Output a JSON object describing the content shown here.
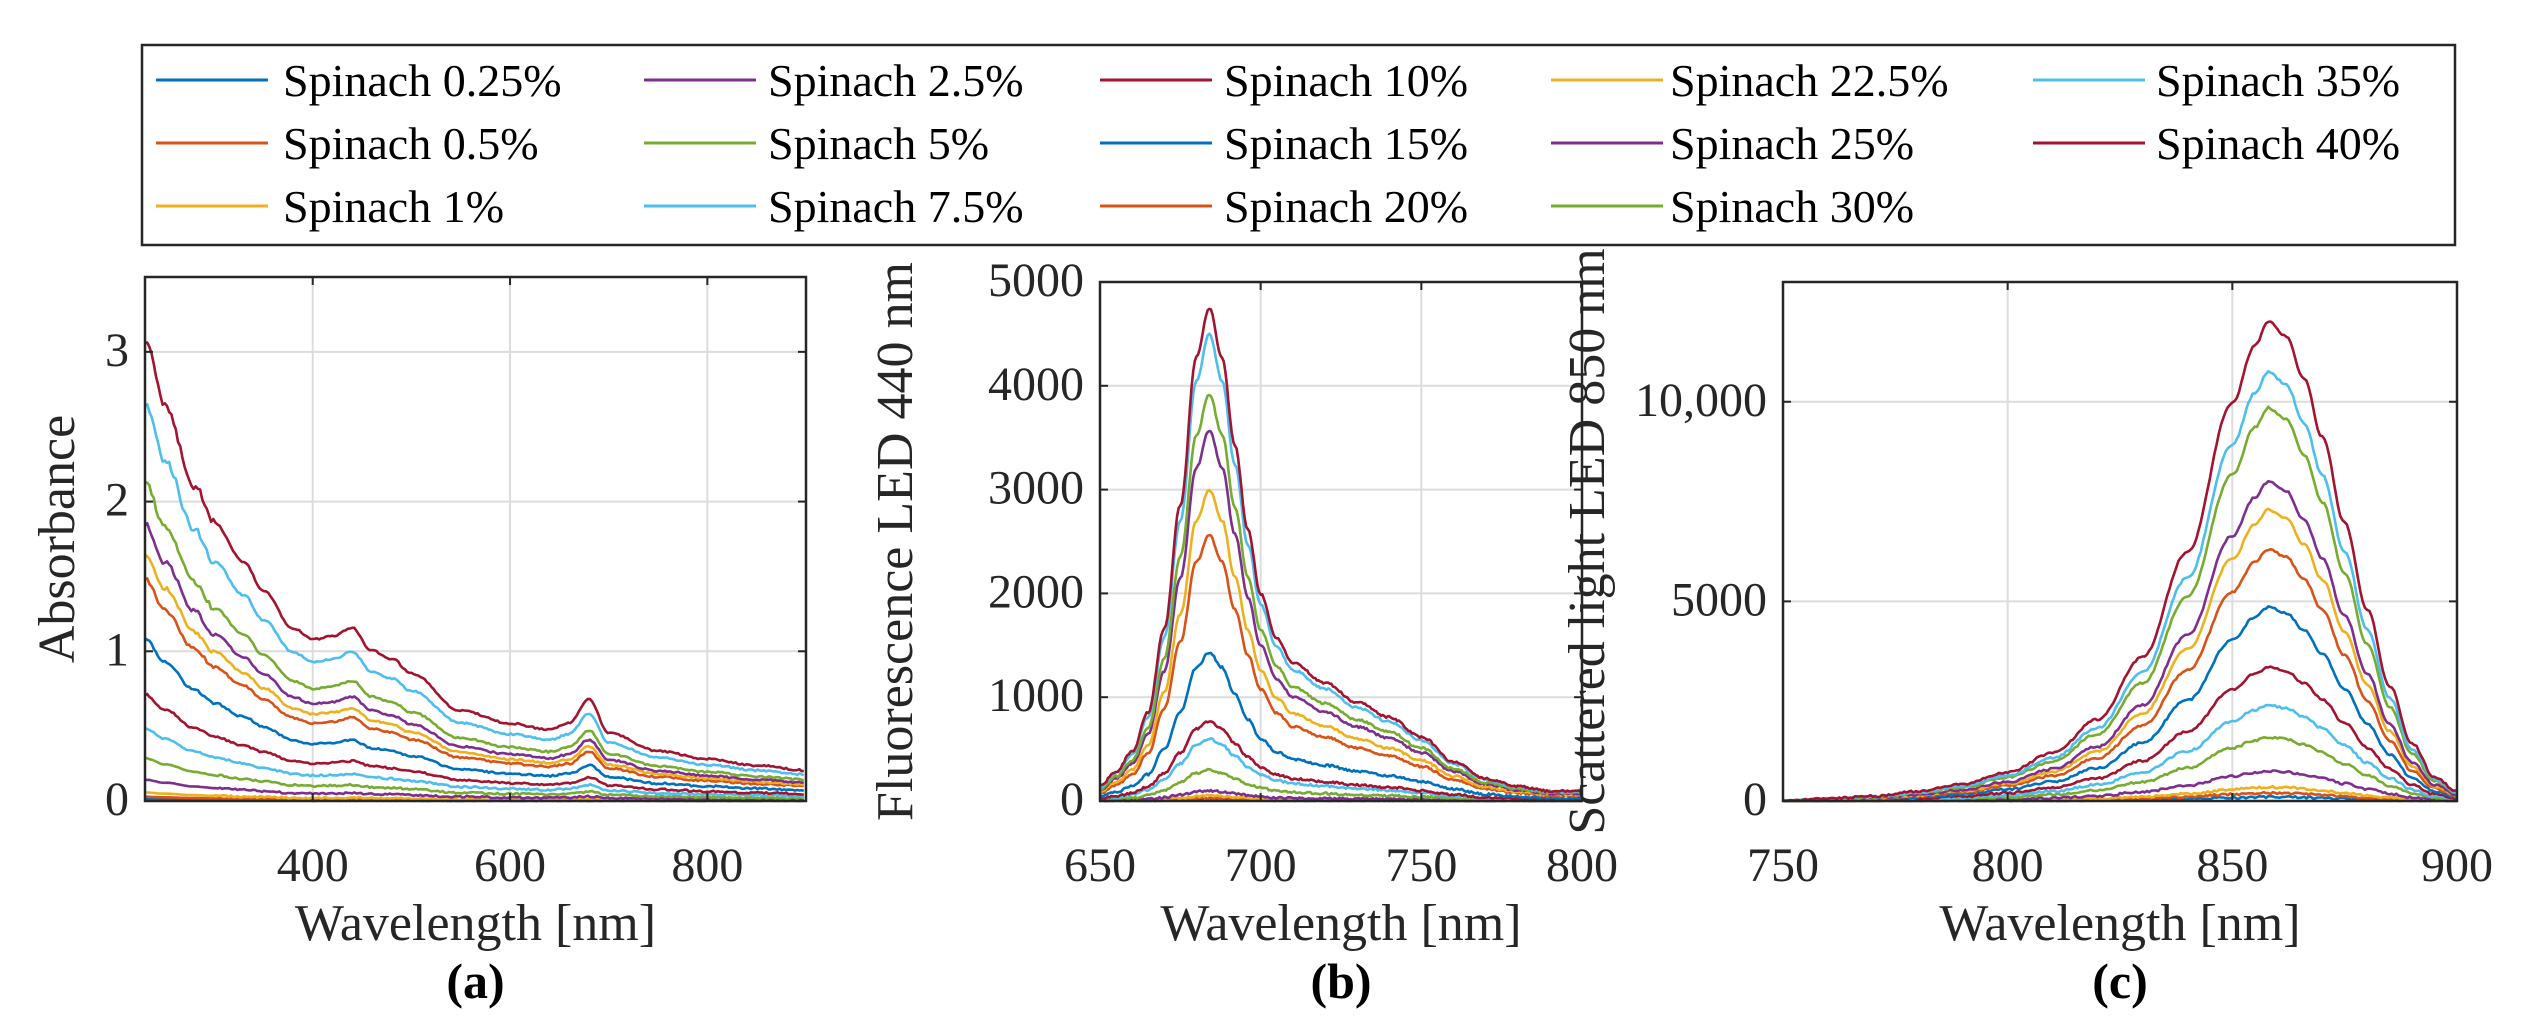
{
  "colors": [
    "#0072BD",
    "#D95319",
    "#EDB120",
    "#7E2F8E",
    "#77AC30",
    "#4DBEEE",
    "#A2142F"
  ],
  "legend": [
    "Spinach 0.25%",
    "Spinach 0.5%",
    "Spinach 1%",
    "Spinach 2.5%",
    "Spinach 5%",
    "Spinach 7.5%",
    "Spinach 10%",
    "Spinach 15%",
    "Spinach 20%",
    "Spinach 22.5%",
    "Spinach 25%",
    "Spinach 30%",
    "Spinach 35%",
    "Spinach 40%"
  ],
  "chart_data": [
    {
      "type": "line",
      "panel_label": "(a)",
      "xlabel": "Wavelength [nm]",
      "ylabel": "Absorbance",
      "xlim": [
        230,
        900
      ],
      "ylim": [
        0,
        3.5
      ],
      "xticks": [
        400,
        600,
        800
      ],
      "yticks": [
        0,
        1,
        2,
        3
      ],
      "ytick_labels": [
        "0",
        "1",
        "2",
        "3"
      ],
      "grid": true,
      "x": [
        230,
        250,
        280,
        300,
        330,
        350,
        380,
        400,
        420,
        440,
        460,
        480,
        500,
        550,
        600,
        640,
        660,
        680,
        700,
        750,
        800,
        850,
        900
      ],
      "shape_normalized_at_400nm": [
        2.85,
        2.45,
        1.95,
        1.72,
        1.48,
        1.3,
        1.07,
        1.0,
        1.02,
        1.07,
        0.93,
        0.88,
        0.79,
        0.56,
        0.48,
        0.44,
        0.48,
        0.63,
        0.42,
        0.31,
        0.26,
        0.22,
        0.19
      ],
      "series": [
        {
          "name": "Spinach 0.25%",
          "value_at_400nm": 0.005
        },
        {
          "name": "Spinach 0.5%",
          "value_at_400nm": 0.01
        },
        {
          "name": "Spinach 1%",
          "value_at_400nm": 0.02
        },
        {
          "name": "Spinach 2.5%",
          "value_at_400nm": 0.05
        },
        {
          "name": "Spinach 5%",
          "value_at_400nm": 0.1
        },
        {
          "name": "Spinach 7.5%",
          "value_at_400nm": 0.17
        },
        {
          "name": "Spinach 10%",
          "value_at_400nm": 0.25
        },
        {
          "name": "Spinach 15%",
          "value_at_400nm": 0.38
        },
        {
          "name": "Spinach 20%",
          "value_at_400nm": 0.52
        },
        {
          "name": "Spinach 22.5%",
          "value_at_400nm": 0.58
        },
        {
          "name": "Spinach 25%",
          "value_at_400nm": 0.65
        },
        {
          "name": "Spinach 30%",
          "value_at_400nm": 0.75
        },
        {
          "name": "Spinach 35%",
          "value_at_400nm": 0.93
        },
        {
          "name": "Spinach 40%",
          "value_at_400nm": 1.08
        }
      ]
    },
    {
      "type": "line",
      "panel_label": "(b)",
      "xlabel": "Wavelength [nm]",
      "ylabel": "Fluorescence LED 440 nm",
      "xlim": [
        650,
        800
      ],
      "ylim": [
        0,
        5000
      ],
      "xticks": [
        650,
        700,
        750,
        800
      ],
      "yticks": [
        0,
        1000,
        2000,
        3000,
        4000,
        5000
      ],
      "ytick_labels": [
        "0",
        "1000",
        "2000",
        "3000",
        "4000",
        "5000"
      ],
      "grid": true,
      "x": [
        650,
        655,
        660,
        665,
        670,
        675,
        680,
        684,
        688,
        692,
        696,
        700,
        705,
        710,
        720,
        730,
        740,
        750,
        760,
        770,
        780,
        790,
        800
      ],
      "shape_normalized_at_peak": [
        0.03,
        0.06,
        0.1,
        0.18,
        0.35,
        0.6,
        0.9,
        1.0,
        0.9,
        0.72,
        0.55,
        0.42,
        0.33,
        0.28,
        0.24,
        0.2,
        0.17,
        0.13,
        0.08,
        0.045,
        0.03,
        0.02,
        0.02
      ],
      "series": [
        {
          "name": "Spinach 0.25%",
          "peak": 20
        },
        {
          "name": "Spinach 0.5%",
          "peak": 30
        },
        {
          "name": "Spinach 1%",
          "peak": 50
        },
        {
          "name": "Spinach 2.5%",
          "peak": 100
        },
        {
          "name": "Spinach 5%",
          "peak": 300
        },
        {
          "name": "Spinach 7.5%",
          "peak": 600
        },
        {
          "name": "Spinach 10%",
          "peak": 770
        },
        {
          "name": "Spinach 15%",
          "peak": 1430
        },
        {
          "name": "Spinach 20%",
          "peak": 2560
        },
        {
          "name": "Spinach 22.5%",
          "peak": 3000
        },
        {
          "name": "Spinach 25%",
          "peak": 3570
        },
        {
          "name": "Spinach 30%",
          "peak": 3920
        },
        {
          "name": "Spinach 35%",
          "peak": 4500
        },
        {
          "name": "Spinach 40%",
          "peak": 4750
        }
      ]
    },
    {
      "type": "line",
      "panel_label": "(c)",
      "xlabel": "Wavelength [nm]",
      "ylabel": "Scattered light LED 850 nm",
      "xlim": [
        750,
        900
      ],
      "ylim": [
        0,
        13000
      ],
      "xticks": [
        750,
        800,
        850,
        900
      ],
      "yticks": [
        0,
        5000,
        10000
      ],
      "ytick_labels": [
        "0",
        "5000",
        "10,000"
      ],
      "grid": true,
      "x": [
        750,
        760,
        770,
        780,
        790,
        800,
        810,
        820,
        830,
        840,
        850,
        855,
        858,
        862,
        866,
        870,
        875,
        880,
        885,
        890,
        895,
        900
      ],
      "shape_normalized_at_peak": [
        0.0,
        0.005,
        0.01,
        0.02,
        0.035,
        0.06,
        0.1,
        0.17,
        0.3,
        0.52,
        0.83,
        0.95,
        1.0,
        0.97,
        0.88,
        0.76,
        0.58,
        0.4,
        0.24,
        0.12,
        0.05,
        0.02
      ],
      "series": [
        {
          "name": "Spinach 0.25%",
          "peak": 100
        },
        {
          "name": "Spinach 0.5%",
          "peak": 200
        },
        {
          "name": "Spinach 1%",
          "peak": 350
        },
        {
          "name": "Spinach 2.5%",
          "peak": 750
        },
        {
          "name": "Spinach 5%",
          "peak": 1600
        },
        {
          "name": "Spinach 7.5%",
          "peak": 2400
        },
        {
          "name": "Spinach 10%",
          "peak": 3350
        },
        {
          "name": "Spinach 15%",
          "peak": 4850
        },
        {
          "name": "Spinach 20%",
          "peak": 6300
        },
        {
          "name": "Spinach 22.5%",
          "peak": 7300
        },
        {
          "name": "Spinach 25%",
          "peak": 8000
        },
        {
          "name": "Spinach 30%",
          "peak": 9850
        },
        {
          "name": "Spinach 35%",
          "peak": 10750
        },
        {
          "name": "Spinach 40%",
          "peak": 12000
        }
      ]
    }
  ]
}
